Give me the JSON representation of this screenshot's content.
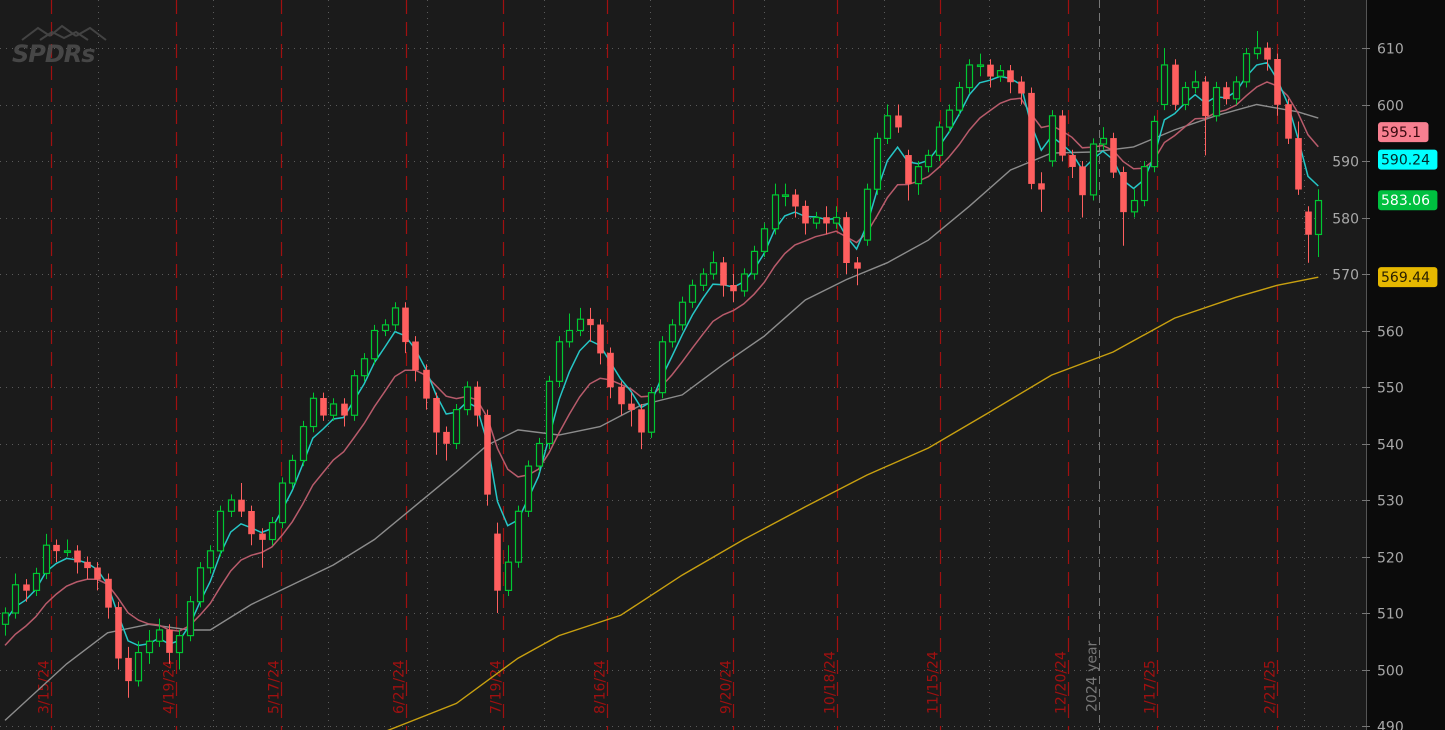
{
  "logo": {
    "text": "SPDRs"
  },
  "colors": {
    "background": "#1b1b1b",
    "axis_background": "#0b0b0b",
    "up": "#00c832",
    "down": "#ff5f5f",
    "ema_fast": "#26c6c6",
    "ema_slow": "#b85b6b",
    "ma_mid": "#8c8c8c",
    "ma_long": "#c8a010",
    "date_marker": "#a01010",
    "year_marker": "#777777"
  },
  "chart_data": {
    "type": "candlestick",
    "y_axis": {
      "ticks": [
        490,
        500,
        510,
        520,
        530,
        540,
        550,
        560,
        570,
        580,
        590,
        600,
        610
      ],
      "range": [
        490,
        612
      ],
      "side": "right"
    },
    "grid": true,
    "candles": [
      [
        508,
        511,
        506,
        510
      ],
      [
        510,
        517,
        509,
        515
      ],
      [
        515,
        516,
        512,
        514
      ],
      [
        514,
        518,
        513,
        517
      ],
      [
        517,
        524,
        516,
        522
      ],
      [
        522,
        523,
        519,
        521
      ],
      [
        521,
        523,
        520,
        521
      ],
      [
        521,
        522,
        517,
        519
      ],
      [
        519,
        520,
        516,
        518
      ],
      [
        518,
        519,
        514,
        516
      ],
      [
        516,
        517,
        509,
        511
      ],
      [
        511,
        512,
        500,
        502
      ],
      [
        502,
        504,
        495,
        498
      ],
      [
        498,
        505,
        497,
        503
      ],
      [
        503,
        507,
        501,
        505
      ],
      [
        505,
        509,
        504,
        507
      ],
      [
        507,
        508,
        501,
        503
      ],
      [
        503,
        507,
        500,
        506
      ],
      [
        506,
        513,
        505,
        512
      ],
      [
        512,
        519,
        511,
        518
      ],
      [
        518,
        522,
        517,
        521
      ],
      [
        521,
        529,
        520,
        528
      ],
      [
        528,
        531,
        527,
        530
      ],
      [
        530,
        533,
        527,
        528
      ],
      [
        528,
        529,
        522,
        524
      ],
      [
        524,
        525,
        518,
        523
      ],
      [
        523,
        527,
        522,
        526
      ],
      [
        526,
        534,
        525,
        533
      ],
      [
        533,
        538,
        532,
        537
      ],
      [
        537,
        544,
        536,
        543
      ],
      [
        543,
        549,
        542,
        548
      ],
      [
        548,
        549,
        544,
        545
      ],
      [
        545,
        548,
        544,
        547
      ],
      [
        547,
        548,
        543,
        545
      ],
      [
        545,
        553,
        544,
        552
      ],
      [
        552,
        556,
        551,
        555
      ],
      [
        555,
        561,
        554,
        560
      ],
      [
        560,
        562,
        559,
        561
      ],
      [
        561,
        565,
        560,
        564
      ],
      [
        564,
        565,
        556,
        558
      ],
      [
        558,
        559,
        551,
        553
      ],
      [
        553,
        554,
        546,
        548
      ],
      [
        548,
        549,
        538,
        542
      ],
      [
        542,
        543,
        537,
        540
      ],
      [
        540,
        547,
        539,
        546
      ],
      [
        546,
        551,
        545,
        550
      ],
      [
        550,
        551,
        543,
        545
      ],
      [
        545,
        546,
        529,
        531
      ],
      [
        524,
        526,
        510,
        514
      ],
      [
        514,
        522,
        513,
        519
      ],
      [
        519,
        529,
        518,
        528
      ],
      [
        528,
        537,
        527,
        536
      ],
      [
        536,
        541,
        535,
        540
      ],
      [
        540,
        552,
        539,
        551
      ],
      [
        551,
        559,
        550,
        558
      ],
      [
        558,
        563,
        557,
        560
      ],
      [
        560,
        564,
        559,
        562
      ],
      [
        562,
        564,
        558,
        561
      ],
      [
        561,
        562,
        554,
        556
      ],
      [
        556,
        557,
        548,
        550
      ],
      [
        550,
        551,
        545,
        547
      ],
      [
        547,
        549,
        543,
        546
      ],
      [
        546,
        547,
        539,
        542
      ],
      [
        542,
        550,
        541,
        549
      ],
      [
        549,
        559,
        548,
        558
      ],
      [
        558,
        562,
        557,
        561
      ],
      [
        561,
        566,
        560,
        565
      ],
      [
        565,
        569,
        564,
        568
      ],
      [
        568,
        571,
        567,
        570
      ],
      [
        570,
        574,
        569,
        572
      ],
      [
        572,
        573,
        566,
        568
      ],
      [
        568,
        570,
        565,
        567
      ],
      [
        567,
        571,
        566,
        570
      ],
      [
        570,
        575,
        569,
        574
      ],
      [
        574,
        579,
        573,
        578
      ],
      [
        578,
        586,
        577,
        584
      ],
      [
        584,
        586,
        582,
        584
      ],
      [
        584,
        585,
        580,
        582
      ],
      [
        582,
        583,
        577,
        579
      ],
      [
        579,
        581,
        578,
        580
      ],
      [
        580,
        582,
        577,
        579
      ],
      [
        579,
        582,
        578,
        580
      ],
      [
        580,
        581,
        570,
        572
      ],
      [
        572,
        573,
        568,
        571
      ],
      [
        576,
        586,
        575,
        585
      ],
      [
        585,
        595,
        584,
        594
      ],
      [
        594,
        600,
        593,
        598
      ],
      [
        598,
        600,
        595,
        596
      ],
      [
        591,
        592,
        583,
        586
      ],
      [
        586,
        590,
        584,
        589
      ],
      [
        589,
        592,
        588,
        591
      ],
      [
        591,
        597,
        590,
        596
      ],
      [
        596,
        600,
        595,
        599
      ],
      [
        599,
        604,
        598,
        603
      ],
      [
        603,
        608,
        602,
        607
      ],
      [
        607,
        609,
        605,
        607
      ],
      [
        607,
        608,
        603,
        605
      ],
      [
        605,
        607,
        604,
        606
      ],
      [
        606,
        607,
        602,
        604
      ],
      [
        604,
        605,
        600,
        602
      ],
      [
        602,
        603,
        585,
        586
      ],
      [
        586,
        588,
        581,
        585
      ],
      [
        590,
        599,
        589,
        598
      ],
      [
        598,
        599,
        590,
        591
      ],
      [
        591,
        592,
        587,
        589
      ],
      [
        589,
        590,
        580,
        584
      ],
      [
        584,
        594,
        583,
        593
      ],
      [
        593,
        596,
        592,
        594
      ],
      [
        594,
        595,
        587,
        588
      ],
      [
        588,
        589,
        575,
        581
      ],
      [
        581,
        585,
        580,
        583
      ],
      [
        583,
        590,
        582,
        589
      ],
      [
        589,
        598,
        588,
        597
      ],
      [
        600,
        610,
        599,
        607
      ],
      [
        607,
        608,
        599,
        600
      ],
      [
        600,
        604,
        599,
        603
      ],
      [
        603,
        606,
        602,
        604
      ],
      [
        604,
        605,
        591,
        598
      ],
      [
        598,
        604,
        597,
        603
      ],
      [
        603,
        604,
        600,
        601
      ],
      [
        601,
        605,
        600,
        604
      ],
      [
        604,
        610,
        603,
        609
      ],
      [
        609,
        613,
        608,
        610
      ],
      [
        610,
        611,
        606,
        608
      ],
      [
        608,
        609,
        598,
        600
      ],
      [
        600,
        601,
        593,
        594
      ],
      [
        594,
        597,
        584,
        585
      ],
      [
        581,
        582,
        572,
        577
      ],
      [
        577,
        585,
        573,
        583
      ]
    ],
    "ema_fast": {
      "seed": 507.5,
      "periods": 4
    },
    "ema_slow": {
      "seed": 503,
      "periods": 10
    },
    "ma_mid_points": [
      [
        0,
        491
      ],
      [
        3,
        496
      ],
      [
        6,
        501
      ],
      [
        10,
        506.5
      ],
      [
        14,
        508
      ],
      [
        18,
        507
      ],
      [
        20,
        507
      ],
      [
        24,
        511.5
      ],
      [
        28,
        515
      ],
      [
        32,
        518.5
      ],
      [
        36,
        523
      ],
      [
        40,
        529
      ],
      [
        44,
        535
      ],
      [
        47,
        539.7
      ],
      [
        50,
        542.4
      ],
      [
        54,
        541.5
      ],
      [
        58,
        543
      ],
      [
        62,
        546.8
      ],
      [
        66,
        548.6
      ],
      [
        70,
        554
      ],
      [
        74,
        559
      ],
      [
        78,
        565.4
      ],
      [
        82,
        569
      ],
      [
        86,
        572
      ],
      [
        90,
        576
      ],
      [
        94,
        582
      ],
      [
        98,
        588.4
      ],
      [
        102,
        591.4
      ],
      [
        106,
        591.6
      ],
      [
        110,
        592.5
      ],
      [
        114,
        595.5
      ],
      [
        118,
        598
      ],
      [
        122,
        600
      ],
      [
        126,
        598.7
      ],
      [
        128,
        597.6
      ]
    ],
    "ma_long_points": [
      [
        37,
        489
      ],
      [
        44,
        494
      ],
      [
        50,
        502
      ],
      [
        54,
        506
      ],
      [
        60,
        509.6
      ],
      [
        66,
        516.7
      ],
      [
        72,
        523
      ],
      [
        78,
        528.8
      ],
      [
        84,
        534.4
      ],
      [
        90,
        539.2
      ],
      [
        96,
        545.6
      ],
      [
        102,
        552.1
      ],
      [
        108,
        556.2
      ],
      [
        114,
        562.2
      ],
      [
        120,
        565.9
      ],
      [
        124,
        568
      ],
      [
        128,
        569.44
      ]
    ],
    "price_labels": [
      {
        "text": "595.1",
        "value": 595.1,
        "bg": "#f77f90",
        "fg": "#3a0a10"
      },
      {
        "text": "590.24",
        "value": 590.24,
        "bg": "#00ffff",
        "fg": "#002a2a"
      },
      {
        "text": "583.06",
        "value": 583.06,
        "bg": "#00c040",
        "fg": "#ffffff"
      },
      {
        "text": "569.44",
        "value": 569.44,
        "bg": "#e6b800",
        "fg": "#2a2000"
      }
    ],
    "date_markers": [
      {
        "label": "3/15/24",
        "candle": 4.5
      },
      {
        "label": "4/19/24",
        "candle": 16.7
      },
      {
        "label": "5/17/24",
        "candle": 26.9
      },
      {
        "label": "6/21/24",
        "candle": 39.1
      },
      {
        "label": "7/19/24",
        "candle": 48.5
      },
      {
        "label": "8/16/24",
        "candle": 58.7
      },
      {
        "label": "9/20/24",
        "candle": 71
      },
      {
        "label": "10/18/24",
        "candle": 81.1
      },
      {
        "label": "11/15/24",
        "candle": 91.1
      },
      {
        "label": "12/20/24",
        "candle": 103.6
      },
      {
        "label": "1/17/25",
        "candle": 112.3
      },
      {
        "label": "2/21/25",
        "candle": 124
      }
    ],
    "year_marker": {
      "label": "2024 year",
      "candle": 106.6
    }
  }
}
